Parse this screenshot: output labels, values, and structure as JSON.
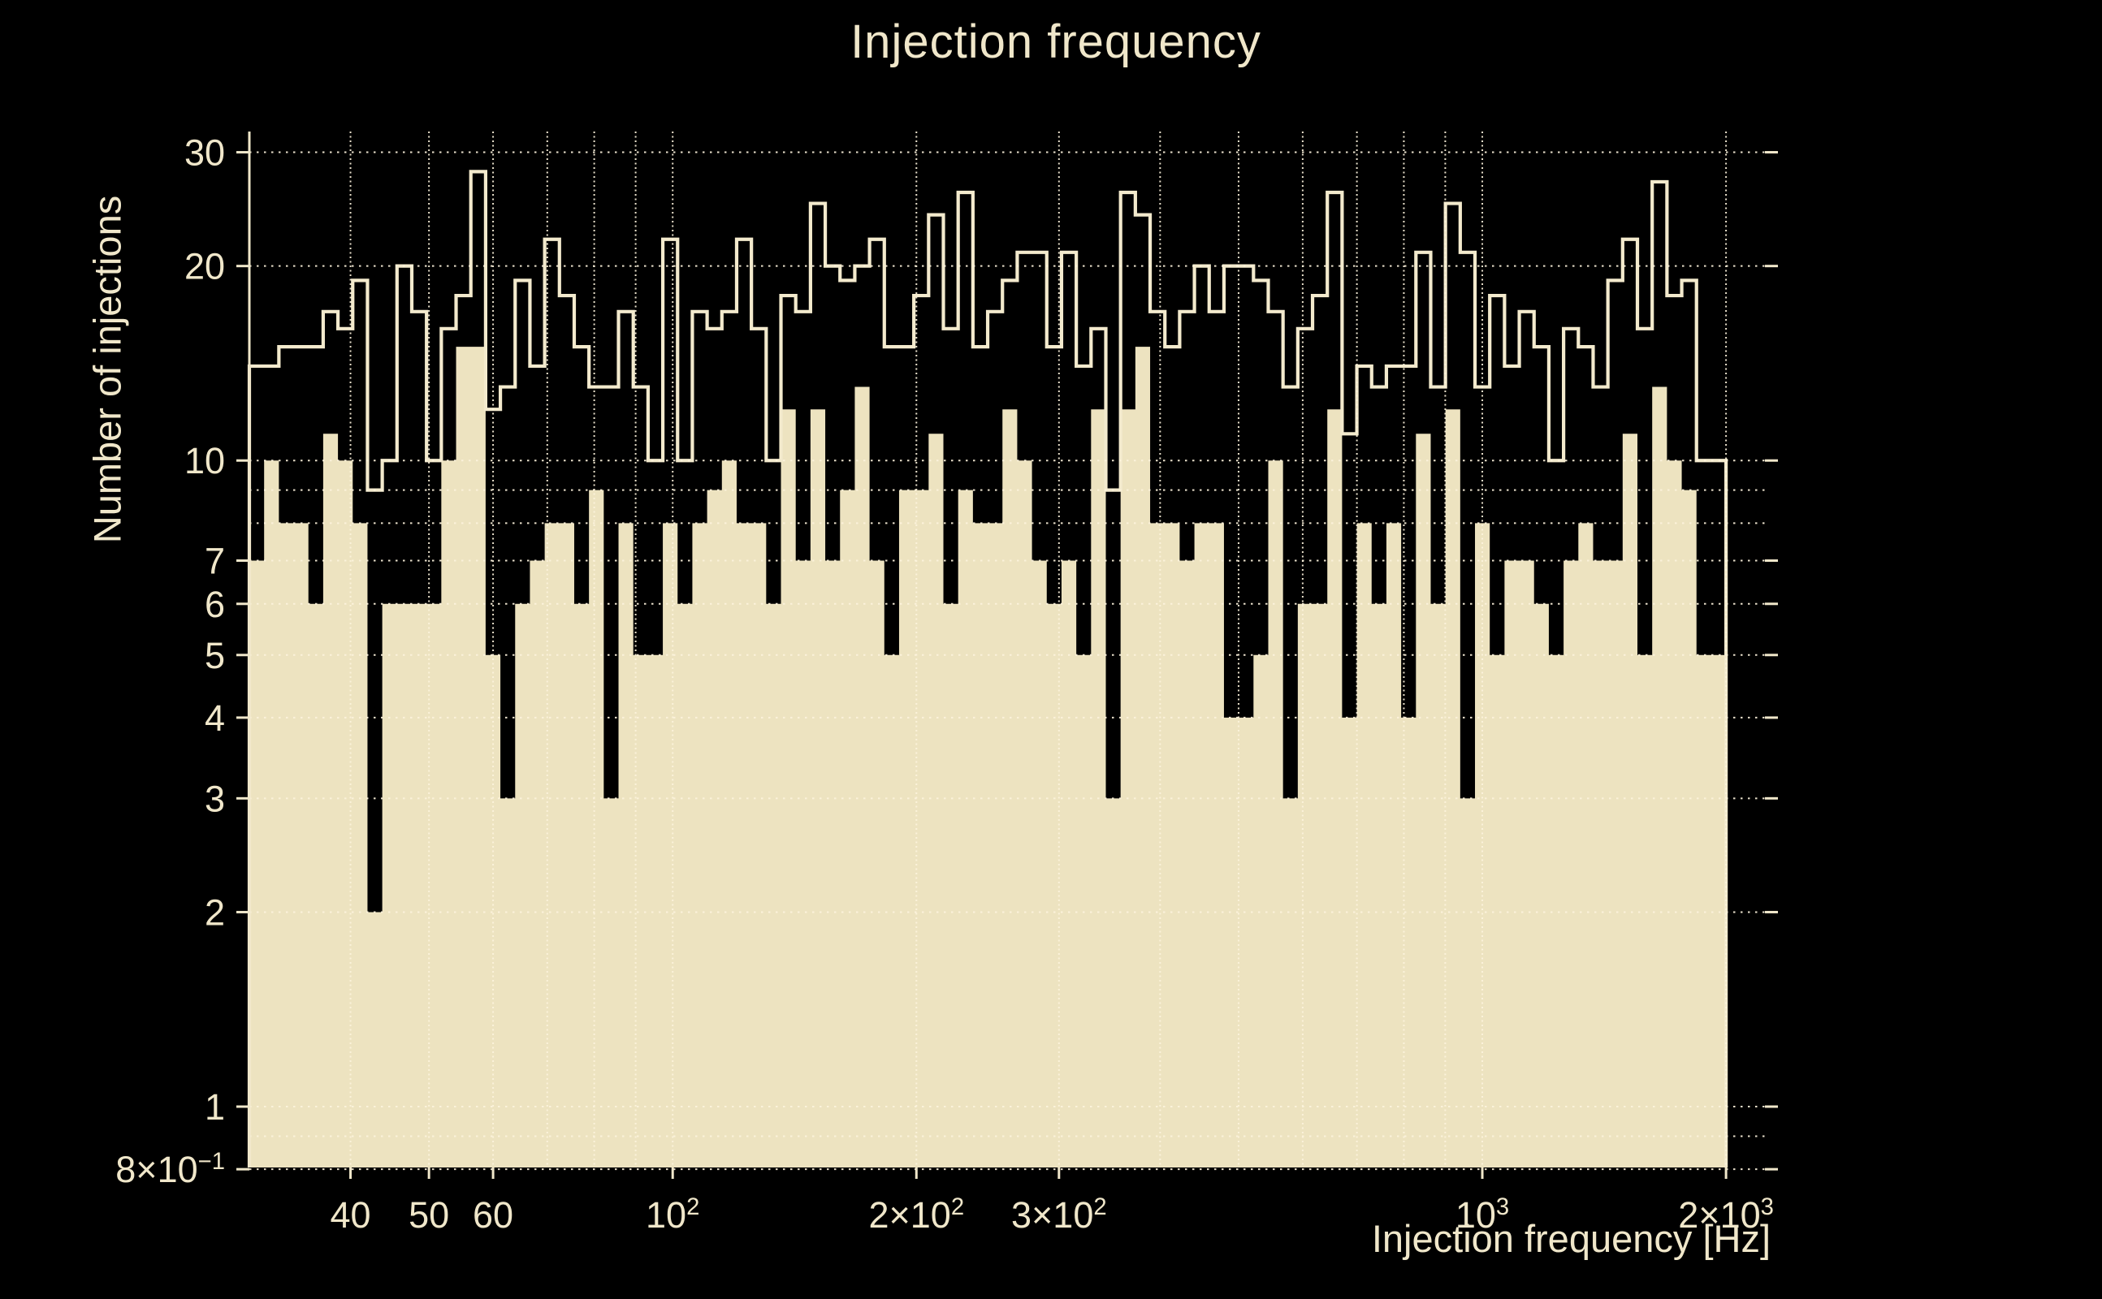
{
  "figure": {
    "title": "Injection frequency",
    "background_color": "#000000",
    "text_color": "#f0e7ca"
  },
  "chart_data": {
    "type": "bar",
    "subtype": "log-log step histogram, two series sharing bins",
    "title": "Injection frequency",
    "xlabel": "Injection frequency [Hz]",
    "ylabel": "Number of injections",
    "x_scale": "log",
    "y_scale": "log",
    "xlim": [
      30,
      2234
    ],
    "ylim": [
      0.805,
      32.3
    ],
    "bins": {
      "min_hz": 30,
      "max_hz": 2000,
      "count": 100,
      "spacing": "log"
    },
    "series": [
      {
        "name": "all-injections-outline",
        "style": "step-outline",
        "values": [
          14,
          14,
          15,
          15,
          15,
          17,
          16,
          19,
          9,
          10,
          20,
          17,
          10,
          16,
          18,
          28,
          12,
          13,
          19,
          14,
          22,
          18,
          15,
          13,
          13,
          17,
          13,
          10,
          22,
          10,
          17,
          16,
          17,
          22,
          16,
          10,
          18,
          17,
          25,
          20,
          19,
          20,
          22,
          15,
          15,
          18,
          24,
          16,
          26,
          15,
          17,
          19,
          21,
          21,
          15,
          21,
          14,
          16,
          9,
          26,
          24,
          17,
          15,
          17,
          20,
          17,
          20,
          20,
          19,
          17,
          13,
          16,
          18,
          26,
          11,
          14,
          13,
          14,
          14,
          21,
          13,
          25,
          21,
          13,
          18,
          14,
          17,
          15,
          10,
          16,
          15,
          13,
          19,
          22,
          16,
          27,
          18,
          19,
          10,
          10
        ]
      },
      {
        "name": "recovered-injections-filled",
        "style": "step-filled",
        "values": [
          7,
          10,
          8,
          8,
          6,
          11,
          10,
          8,
          2,
          6,
          6,
          6,
          6,
          10,
          15,
          15,
          5,
          3,
          6,
          7,
          8,
          8,
          6,
          9,
          3,
          8,
          5,
          5,
          8,
          6,
          8,
          9,
          10,
          8,
          8,
          6,
          12,
          7,
          12,
          7,
          9,
          13,
          7,
          5,
          9,
          9,
          11,
          6,
          9,
          8,
          8,
          12,
          10,
          7,
          6,
          7,
          5,
          12,
          3,
          12,
          15,
          8,
          8,
          7,
          8,
          8,
          4,
          4,
          5,
          10,
          3,
          6,
          6,
          12,
          4,
          8,
          6,
          8,
          4,
          11,
          6,
          12,
          3,
          8,
          5,
          7,
          7,
          6,
          5,
          7,
          8,
          7,
          7,
          11,
          5,
          13,
          10,
          9,
          5,
          5
        ]
      }
    ],
    "x_ticks": [
      {
        "v": 40,
        "t": "40"
      },
      {
        "v": 50,
        "t": "50"
      },
      {
        "v": 60,
        "t": "60"
      },
      {
        "v": 100,
        "t": "10",
        "sup": "2"
      },
      {
        "v": 200,
        "t": "2×10",
        "sup": "2"
      },
      {
        "v": 300,
        "t": "3×10",
        "sup": "2"
      },
      {
        "v": 1000,
        "t": "10",
        "sup": "3"
      },
      {
        "v": 2000,
        "t": "2×10",
        "sup": "3"
      }
    ],
    "y_ticks": [
      {
        "v": 30,
        "t": "30"
      },
      {
        "v": 20,
        "t": "20"
      },
      {
        "v": 10,
        "t": "10"
      },
      {
        "v": 7,
        "t": "7"
      },
      {
        "v": 6,
        "t": "6"
      },
      {
        "v": 5,
        "t": "5"
      },
      {
        "v": 4,
        "t": "4"
      },
      {
        "v": 3,
        "t": "3"
      },
      {
        "v": 2,
        "t": "2"
      },
      {
        "v": 1,
        "t": "1"
      },
      {
        "v": 0.8,
        "t": "8×10",
        "sup": "−1"
      }
    ],
    "x_gridlines": [
      40,
      50,
      60,
      70,
      80,
      90,
      100,
      200,
      300,
      400,
      500,
      600,
      700,
      800,
      900,
      1000,
      2000
    ],
    "y_gridlines": [
      0.8,
      0.9,
      1,
      2,
      3,
      4,
      5,
      6,
      7,
      8,
      9,
      10,
      20,
      30
    ],
    "grid": true,
    "legend": "none",
    "colors": {
      "bar_fill": "#ede3c0",
      "step_line": "#f3eacd",
      "gridline": "#fdf4dd",
      "axis": "#f0e7ca",
      "text": "#f0e7ca"
    }
  }
}
